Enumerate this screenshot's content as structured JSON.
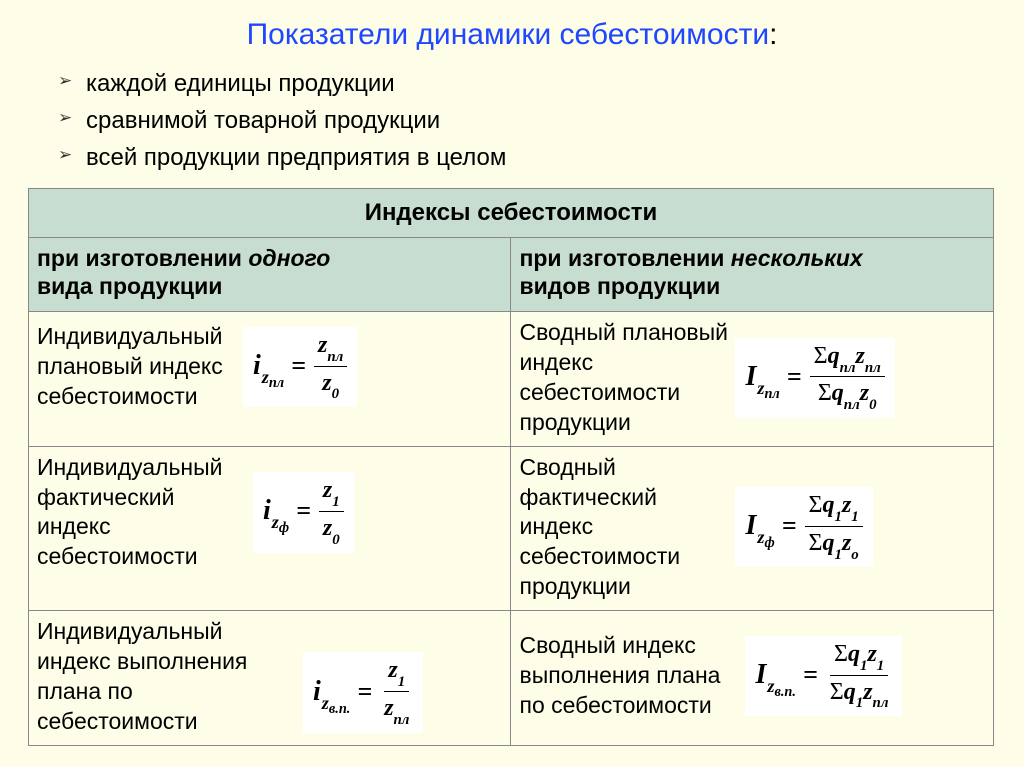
{
  "title": "Показатели динамики себестоимости",
  "colon": ":",
  "bullets": [
    "каждой единицы продукции",
    "сравнимой товарной продукции",
    "всей продукции предприятия в целом"
  ],
  "table": {
    "header_main": "Индексы себестоимости",
    "col1_a": "при изготовлении ",
    "col1_b": "одного",
    "col1_c": "вида продукции",
    "col2_a": "при изготовлении ",
    "col2_b": "нескольких",
    "col2_c": "видов продукции",
    "rows": [
      {
        "left_desc": "Индивидуальный плановый индекс себестоимости",
        "right_desc": "Сводный плановый индекс себестоимости продукции",
        "left_formula": {
          "lhs_main": "i",
          "lhs_s1": "z",
          "lhs_s2": "пл",
          "num": "z<sub class='subsub'>пл</sub>",
          "den": "z<sub class='subsub'>0</sub>"
        },
        "right_formula": {
          "lhs_main": "I",
          "lhs_s1": "z",
          "lhs_s2": "пл",
          "num": "<span class='sigma'>Σ</span>q<sub class='subsub'>пл</sub>z<sub class='subsub'>пл</sub>",
          "den": "<span class='sigma'>Σ</span>q<sub class='subsub'>пл</sub>z<sub class='subsub'>0</sub>"
        }
      },
      {
        "left_desc": "Индивидуальный фактический индекс себестоимости",
        "right_desc": "Сводный фактический индекс себестоимости продукции",
        "left_formula": {
          "lhs_main": "i",
          "lhs_s1": "z",
          "lhs_s2": "ф",
          "num": "z<sub class='subsub'>1</sub>",
          "den": "z<sub class='subsub'>0</sub>"
        },
        "right_formula": {
          "lhs_main": "I",
          "lhs_s1": "z",
          "lhs_s2": "ф",
          "num": "<span class='sigma'>Σ</span>q<sub class='subsub'>1</sub>z<sub class='subsub'>1</sub>",
          "den": "<span class='sigma'>Σ</span>q<sub class='subsub'>1</sub>z<sub class='subsub'>o</sub>"
        }
      },
      {
        "left_desc": "Индивидуальный индекс выполнения плана по себестоимости",
        "right_desc": "Сводный индекс\n выполнения плана\n по себестоимости",
        "left_formula": {
          "lhs_main": "i",
          "lhs_s1": "z",
          "lhs_s2": "в.п.",
          "num": "z<sub class='subsub'>1</sub>",
          "den": "z<sub class='subsub'>пл</sub>"
        },
        "right_formula": {
          "lhs_main": "I",
          "lhs_s1": "z",
          "lhs_s2": "в.п.",
          "num": "<span class='sigma'>Σ</span>q<sub class='subsub'>1</sub>z<sub class='subsub'>1</sub>",
          "den": "<span class='sigma'>Σ</span>q<sub class='subsub'>1</sub>z<sub class='subsub'>пл</sub>"
        }
      }
    ]
  },
  "colors": {
    "background": "#fdfde8",
    "header_bg": "#c7ddcf",
    "title_color": "#1f47ff",
    "formula_bg": "#ffffff",
    "border": "#888888",
    "text": "#000000"
  },
  "typography": {
    "title_fontsize": 30,
    "bullet_fontsize": 24,
    "header_fontsize": 24,
    "desc_fontsize": 23,
    "formula_fontsize": 26,
    "formula_family": "Times New Roman"
  }
}
